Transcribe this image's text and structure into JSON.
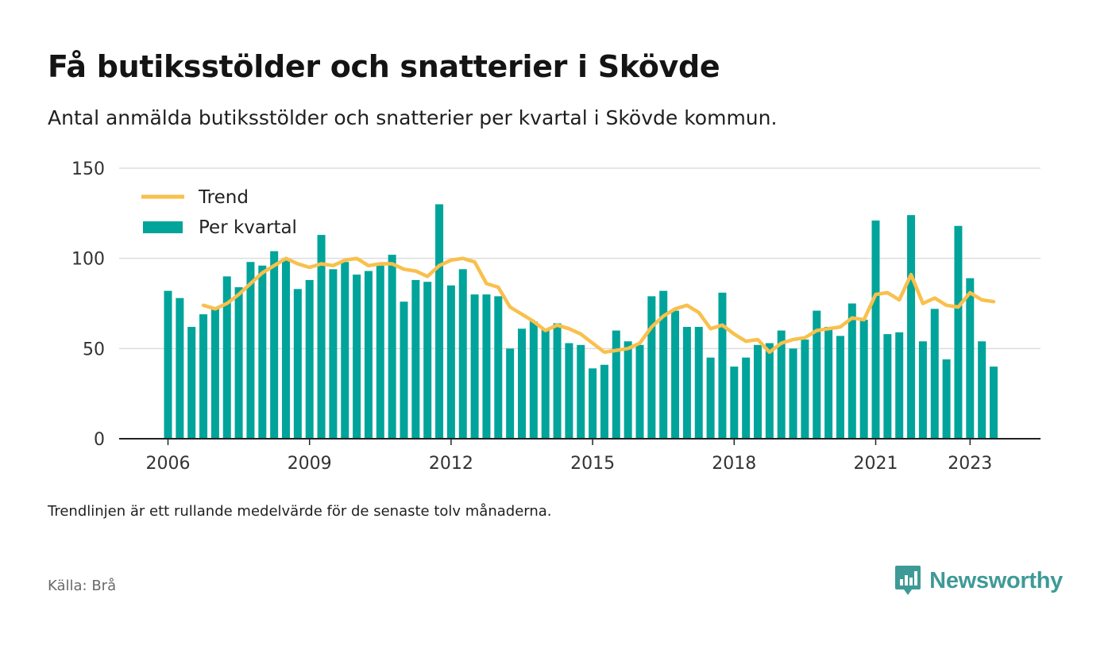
{
  "header": {
    "title": "Få butiksstölder och snatterier i Skövde",
    "subtitle": "Antal anmälda butiksstölder och snatterier per kvartal i Skövde kommun."
  },
  "footer": {
    "note": "Trendlinjen är ett rullande medelvärde för de senaste tolv månaderna.",
    "source": "Källa: Brå",
    "brand": "Newsworthy",
    "brand_icon": "newsworthy-logo-icon"
  },
  "colors": {
    "bars": "#00a49a",
    "trend": "#f9c04d",
    "grid": "#dddddd",
    "axis": "#222222",
    "brand": "#3e9a96"
  },
  "chart_data": {
    "type": "bar",
    "ylim": [
      0,
      150
    ],
    "yticks": [
      0,
      50,
      100,
      150
    ],
    "xticks": [
      "2006",
      "2009",
      "2012",
      "2015",
      "2018",
      "2021",
      "2023"
    ],
    "x_start": "2006-Q1",
    "legend": {
      "position": "top-left",
      "items": [
        "Trend",
        "Per kvartal"
      ]
    },
    "grid": true,
    "series": [
      {
        "name": "Per kvartal",
        "type": "bar",
        "values": [
          82,
          78,
          62,
          69,
          73,
          90,
          84,
          98,
          96,
          104,
          100,
          83,
          88,
          113,
          94,
          98,
          91,
          93,
          96,
          102,
          76,
          88,
          87,
          130,
          85,
          94,
          80,
          80,
          79,
          50,
          61,
          65,
          61,
          64,
          53,
          52,
          39,
          41,
          60,
          54,
          52,
          79,
          82,
          71,
          62,
          62,
          45,
          81,
          40,
          45,
          52,
          53,
          60,
          50,
          55,
          71,
          62,
          57,
          75,
          66,
          121,
          58,
          59,
          124,
          54,
          72,
          44,
          118,
          89,
          54,
          40
        ]
      },
      {
        "name": "Trend",
        "type": "line",
        "values": [
          null,
          null,
          null,
          74,
          72,
          75,
          80,
          86,
          92,
          96,
          100,
          97,
          95,
          97,
          96,
          99,
          100,
          96,
          97,
          97,
          94,
          93,
          90,
          96,
          99,
          100,
          98,
          86,
          84,
          73,
          69,
          65,
          60,
          63,
          61,
          58,
          53,
          48,
          49,
          50,
          53,
          62,
          68,
          72,
          74,
          70,
          61,
          63,
          58,
          54,
          55,
          48,
          53,
          55,
          56,
          60,
          61,
          62,
          67,
          66,
          80,
          81,
          77,
          91,
          75,
          78,
          74,
          73,
          81,
          77,
          76
        ]
      }
    ]
  }
}
